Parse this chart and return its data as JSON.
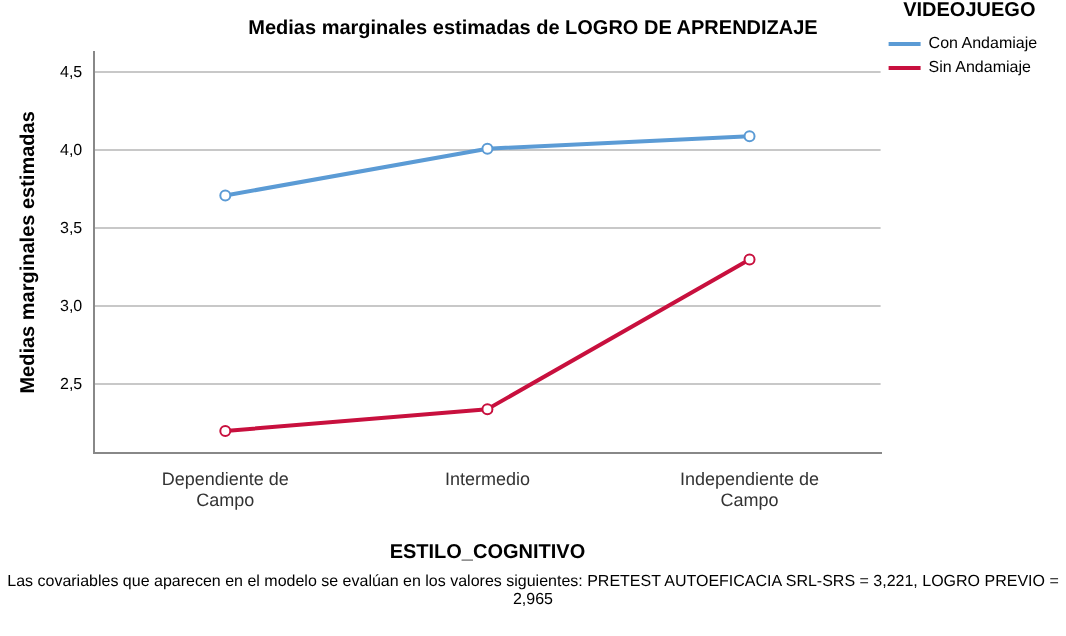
{
  "chart_data": {
    "type": "line",
    "title": "Medias marginales estimadas de LOGRO DE APRENDIZAJE",
    "xlabel": "ESTILO_COGNITIVO",
    "ylabel": "Medias marginales estimadas",
    "legend_title": "VIDEOJUEGO",
    "categories": [
      [
        "Dependiente de",
        "Campo"
      ],
      "Intermedio",
      [
        "Independiente de",
        "Campo"
      ]
    ],
    "series": [
      {
        "name": "Con Andamiaje",
        "color": "#5b9bd5",
        "values": [
          3.71,
          4.01,
          4.09
        ]
      },
      {
        "name": "Sin Andamiaje",
        "color": "#c8103e",
        "values": [
          2.2,
          2.34,
          3.3
        ]
      }
    ],
    "ylim": [
      2.06,
      4.63
    ],
    "yticks": [
      {
        "value": 2.5,
        "label": "2,5"
      },
      {
        "value": 3,
        "label": "3,0"
      },
      {
        "value": 3.5,
        "label": "3,5"
      },
      {
        "value": 4,
        "label": "4,0"
      },
      {
        "value": 4.5,
        "label": "4,5"
      }
    ],
    "grid": "y",
    "legend": "top right",
    "marker": "circle",
    "line_style": "solid",
    "annotations": [
      "Las covariables que aparecen en el modelo se evalúan en los valores siguientes: PRETEST AUTOEFICACIA SRL-SRS = 3,221, LOGRO PREVIO = 2,965"
    ]
  }
}
